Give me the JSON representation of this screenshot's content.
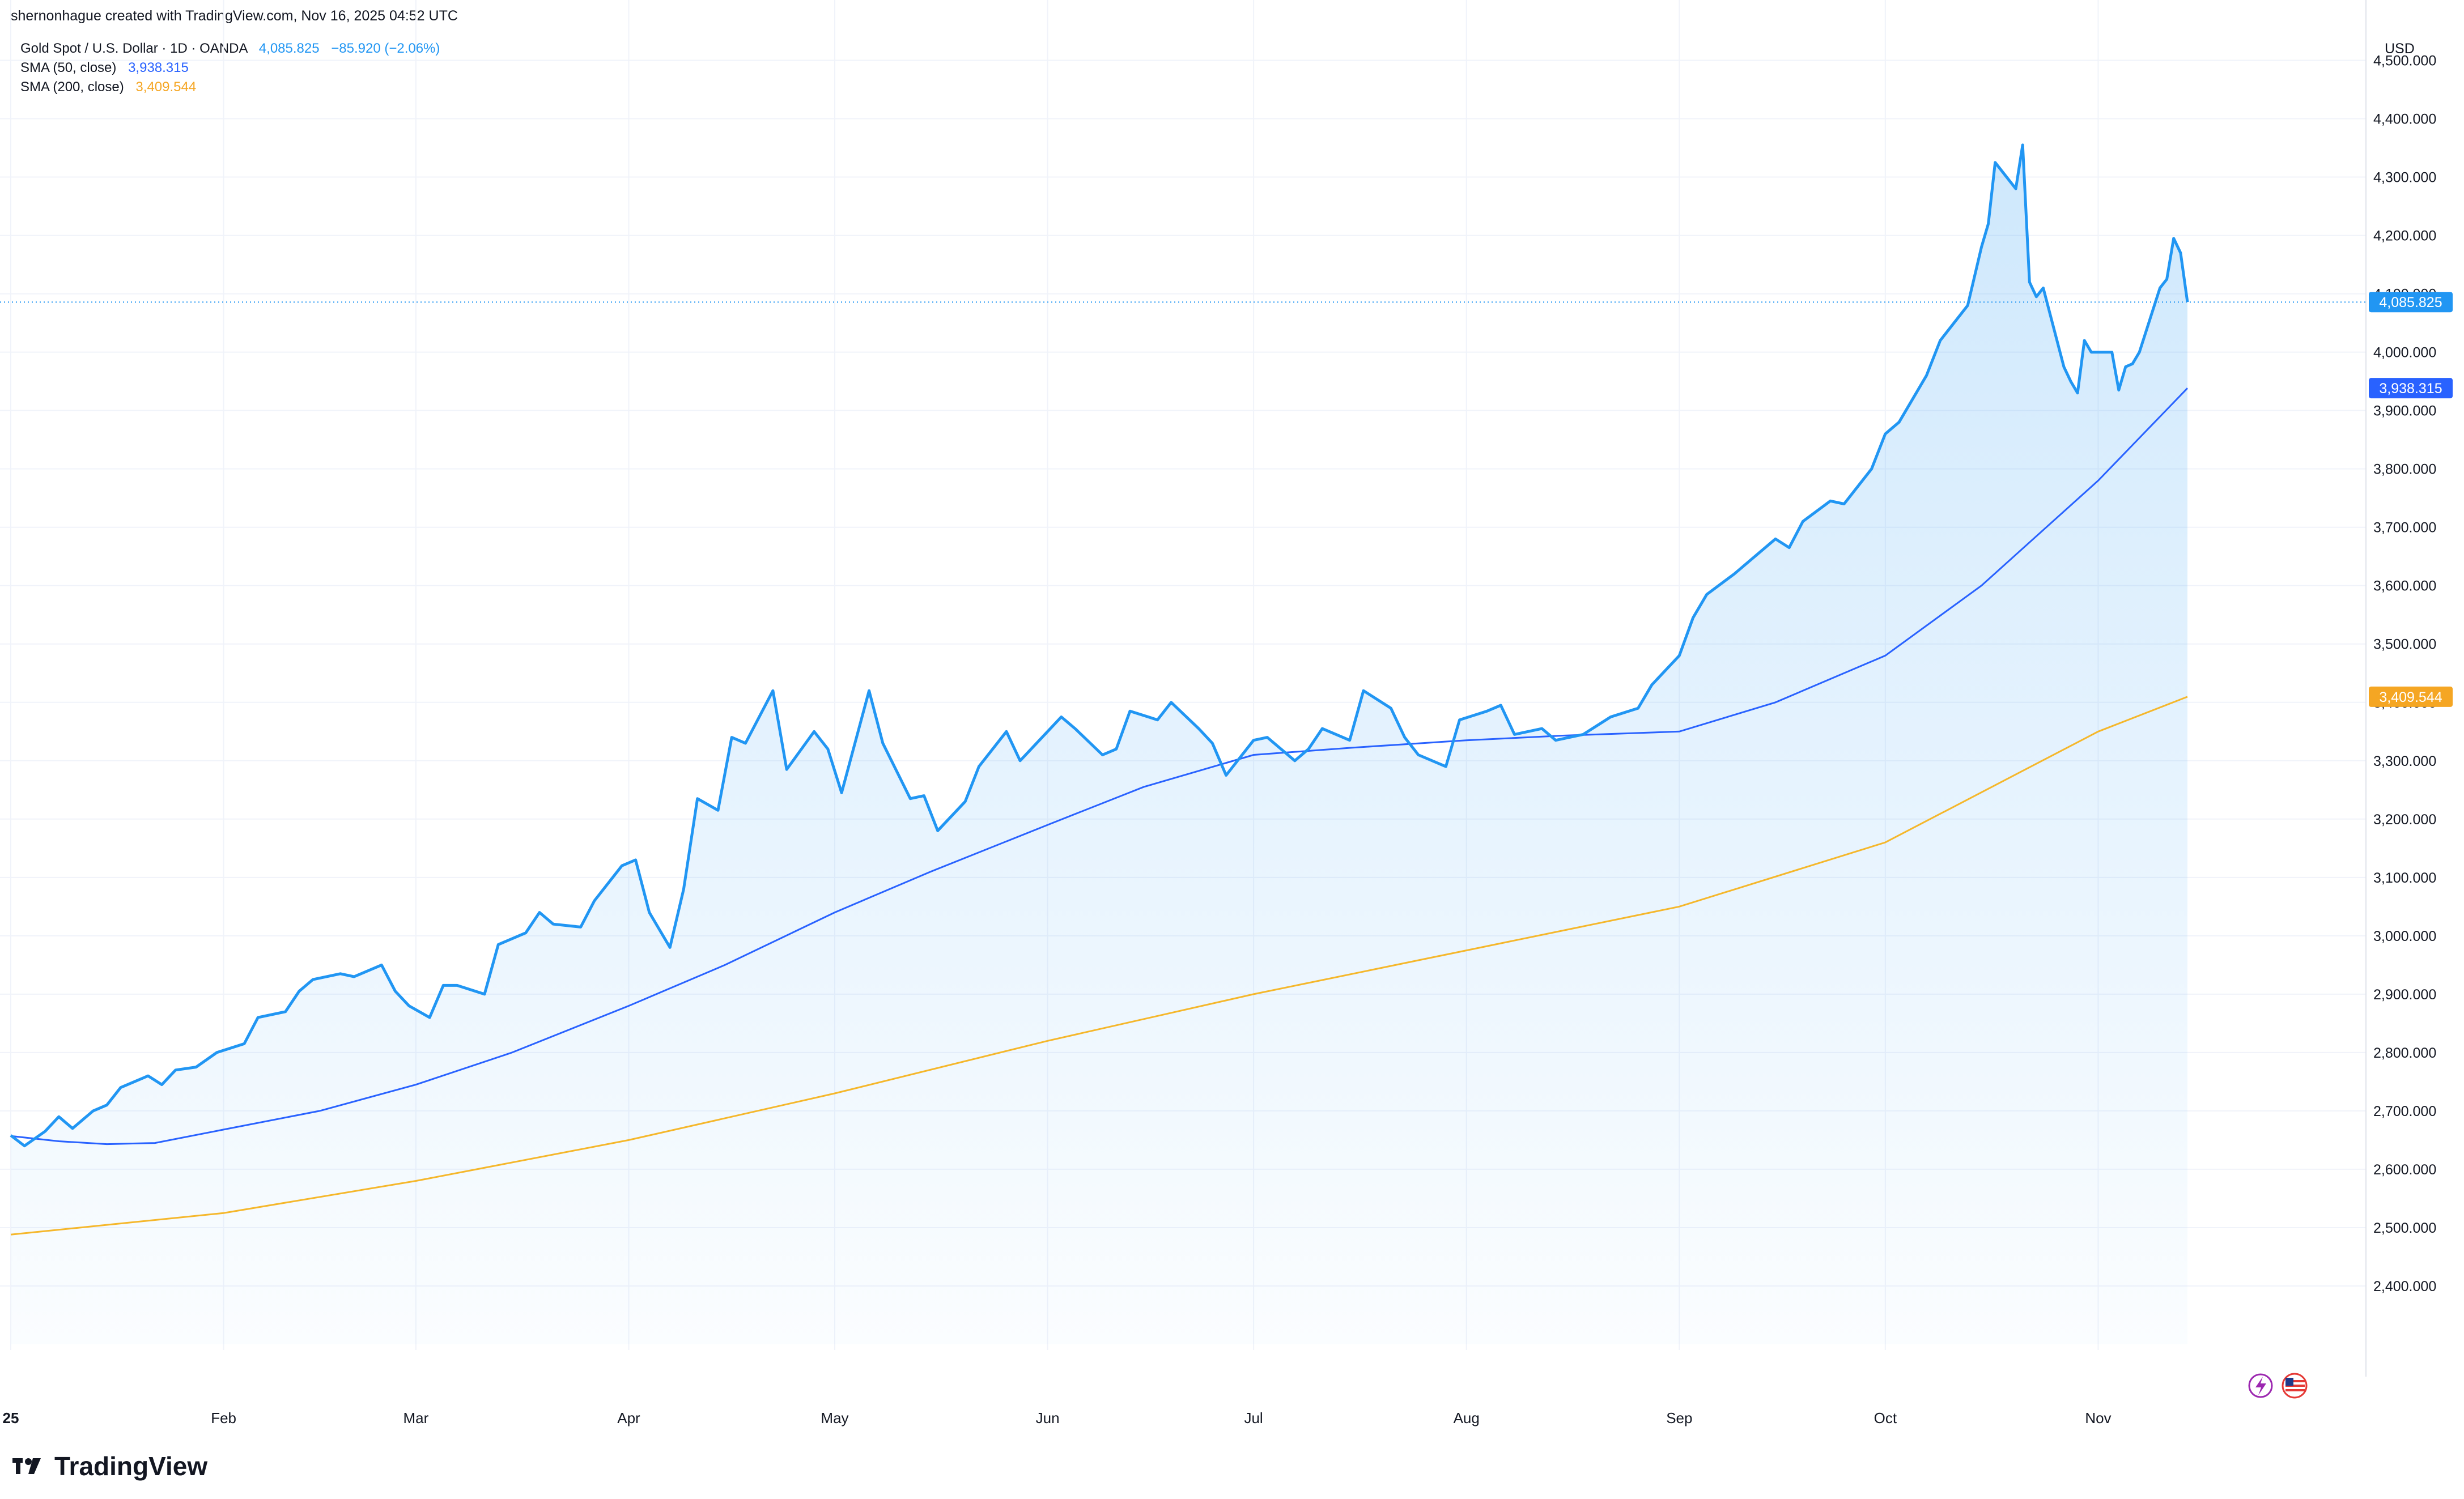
{
  "header": "shernonhague created with TradingView.com, Nov 16, 2025 04:52 UTC",
  "legend": {
    "symbol": "Gold Spot / U.S. Dollar · 1D · OANDA",
    "price": "4,085.825",
    "change": "−85.920 (−2.06%)",
    "sma50_label": "SMA (50, close)",
    "sma50_value": "3,938.315",
    "sma200_label": "SMA (200, close)",
    "sma200_value": "3,409.544"
  },
  "brand": "TradingView",
  "colors": {
    "price": "#2196f3",
    "change": "#2196f3",
    "sma50": "#2962ff",
    "sma200": "#f5b72b",
    "grid": "#f0f3fa",
    "text": "#131722"
  },
  "chart_data": {
    "type": "area",
    "currency": "USD",
    "y_range": [
      2300,
      4550
    ],
    "y_ticks": [
      2400,
      2500,
      2600,
      2700,
      2800,
      2900,
      3000,
      3100,
      3200,
      3300,
      3400,
      3500,
      3600,
      3700,
      3800,
      3900,
      4000,
      4100,
      4200,
      4300,
      4400,
      4500
    ],
    "y_tick_labels": [
      "2,400.000",
      "2,500.000",
      "2,600.000",
      "2,700.000",
      "2,800.000",
      "2,900.000",
      "3,000.000",
      "3,100.000",
      "3,200.000",
      "3,300.000",
      "3,400.000",
      "3,500.000",
      "3,600.000",
      "3,700.000",
      "3,800.000",
      "3,900.000",
      "4,000.000",
      "4,100.000",
      "4,200.000",
      "4,300.000",
      "4,400.000",
      "4,500.000"
    ],
    "x_labels": [
      {
        "label": "25",
        "date": "2025-01-01",
        "bold": true
      },
      {
        "label": "Feb",
        "date": "2025-02-01"
      },
      {
        "label": "Mar",
        "date": "2025-03-01"
      },
      {
        "label": "Apr",
        "date": "2025-04-01"
      },
      {
        "label": "May",
        "date": "2025-05-01"
      },
      {
        "label": "Jun",
        "date": "2025-06-01"
      },
      {
        "label": "Jul",
        "date": "2025-07-01"
      },
      {
        "label": "Aug",
        "date": "2025-08-01"
      },
      {
        "label": "Sep",
        "date": "2025-09-01"
      },
      {
        "label": "Oct",
        "date": "2025-10-01"
      },
      {
        "label": "Nov",
        "date": "2025-11-01"
      }
    ],
    "x_domain": [
      "2025-01-01",
      "2025-12-10"
    ],
    "series": [
      {
        "name": "Gold Spot / U.S. Dollar",
        "role": "price",
        "x": [
          "2025-01-01",
          "2025-01-03",
          "2025-01-06",
          "2025-01-08",
          "2025-01-10",
          "2025-01-13",
          "2025-01-15",
          "2025-01-17",
          "2025-01-21",
          "2025-01-23",
          "2025-01-25",
          "2025-01-28",
          "2025-01-31",
          "2025-02-04",
          "2025-02-06",
          "2025-02-10",
          "2025-02-12",
          "2025-02-14",
          "2025-02-18",
          "2025-02-20",
          "2025-02-24",
          "2025-02-26",
          "2025-02-28",
          "2025-03-03",
          "2025-03-05",
          "2025-03-07",
          "2025-03-11",
          "2025-03-13",
          "2025-03-17",
          "2025-03-19",
          "2025-03-21",
          "2025-03-25",
          "2025-03-27",
          "2025-03-31",
          "2025-04-02",
          "2025-04-04",
          "2025-04-07",
          "2025-04-09",
          "2025-04-11",
          "2025-04-14",
          "2025-04-16",
          "2025-04-18",
          "2025-04-22",
          "2025-04-24",
          "2025-04-28",
          "2025-04-30",
          "2025-05-02",
          "2025-05-06",
          "2025-05-08",
          "2025-05-12",
          "2025-05-14",
          "2025-05-16",
          "2025-05-20",
          "2025-05-22",
          "2025-05-26",
          "2025-05-28",
          "2025-05-30",
          "2025-06-03",
          "2025-06-05",
          "2025-06-09",
          "2025-06-11",
          "2025-06-13",
          "2025-06-17",
          "2025-06-19",
          "2025-06-23",
          "2025-06-25",
          "2025-06-27",
          "2025-07-01",
          "2025-07-03",
          "2025-07-07",
          "2025-07-09",
          "2025-07-11",
          "2025-07-15",
          "2025-07-17",
          "2025-07-21",
          "2025-07-23",
          "2025-07-25",
          "2025-07-29",
          "2025-07-31",
          "2025-08-04",
          "2025-08-06",
          "2025-08-08",
          "2025-08-12",
          "2025-08-14",
          "2025-08-18",
          "2025-08-20",
          "2025-08-22",
          "2025-08-26",
          "2025-08-28",
          "2025-09-01",
          "2025-09-03",
          "2025-09-05",
          "2025-09-09",
          "2025-09-11",
          "2025-09-15",
          "2025-09-17",
          "2025-09-19",
          "2025-09-23",
          "2025-09-25",
          "2025-09-29",
          "2025-10-01",
          "2025-10-03",
          "2025-10-07",
          "2025-10-09",
          "2025-10-13",
          "2025-10-15",
          "2025-10-16",
          "2025-10-17",
          "2025-10-20",
          "2025-10-21",
          "2025-10-22",
          "2025-10-23",
          "2025-10-24",
          "2025-10-27",
          "2025-10-28",
          "2025-10-29",
          "2025-10-30",
          "2025-10-31",
          "2025-11-03",
          "2025-11-04",
          "2025-11-05",
          "2025-11-06",
          "2025-11-07",
          "2025-11-10",
          "2025-11-11",
          "2025-11-12",
          "2025-11-13",
          "2025-11-14"
        ],
        "values": [
          2658,
          2640,
          2665,
          2690,
          2670,
          2700,
          2710,
          2740,
          2760,
          2745,
          2770,
          2775,
          2800,
          2815,
          2860,
          2870,
          2905,
          2925,
          2935,
          2930,
          2950,
          2905,
          2880,
          2860,
          2915,
          2915,
          2900,
          2985,
          3005,
          3040,
          3020,
          3015,
          3060,
          3120,
          3130,
          3040,
          2980,
          3080,
          3235,
          3215,
          3340,
          3330,
          3420,
          3285,
          3350,
          3320,
          3245,
          3420,
          3330,
          3235,
          3240,
          3180,
          3230,
          3290,
          3350,
          3300,
          3325,
          3375,
          3355,
          3310,
          3320,
          3385,
          3370,
          3400,
          3355,
          3330,
          3275,
          3335,
          3340,
          3300,
          3320,
          3355,
          3335,
          3420,
          3390,
          3340,
          3310,
          3290,
          3370,
          3385,
          3395,
          3345,
          3355,
          3335,
          3345,
          3360,
          3375,
          3390,
          3430,
          3480,
          3545,
          3585,
          3620,
          3640,
          3680,
          3665,
          3710,
          3745,
          3740,
          3800,
          3860,
          3880,
          3960,
          4020,
          4080,
          4180,
          4220,
          4325,
          4280,
          4355,
          4120,
          4095,
          4110,
          3975,
          3950,
          3930,
          4020,
          4000,
          4000,
          3935,
          3975,
          3980,
          4000,
          4110,
          4125,
          4195,
          4170,
          4085.825
        ]
      },
      {
        "name": "SMA (50, close)",
        "role": "sma50",
        "x": [
          "2025-01-01",
          "2025-01-08",
          "2025-01-15",
          "2025-01-22",
          "2025-02-01",
          "2025-02-15",
          "2025-03-01",
          "2025-03-15",
          "2025-04-01",
          "2025-04-15",
          "2025-05-01",
          "2025-05-15",
          "2025-06-01",
          "2025-06-15",
          "2025-07-01",
          "2025-07-15",
          "2025-08-01",
          "2025-08-15",
          "2025-09-01",
          "2025-09-15",
          "2025-10-01",
          "2025-10-15",
          "2025-11-01",
          "2025-11-14"
        ],
        "values": [
          2657,
          2648,
          2643,
          2645,
          2668,
          2700,
          2745,
          2800,
          2880,
          2950,
          3040,
          3110,
          3190,
          3255,
          3310,
          3322,
          3335,
          3343,
          3350,
          3400,
          3480,
          3600,
          3780,
          3938.315
        ]
      },
      {
        "name": "SMA (200, close)",
        "role": "sma200",
        "x": [
          "2025-01-01",
          "2025-02-01",
          "2025-03-01",
          "2025-04-01",
          "2025-05-01",
          "2025-06-01",
          "2025-07-01",
          "2025-08-01",
          "2025-09-01",
          "2025-10-01",
          "2025-11-01",
          "2025-11-14"
        ],
        "values": [
          2488,
          2525,
          2580,
          2650,
          2730,
          2820,
          2900,
          2975,
          3050,
          3160,
          3350,
          3409.544
        ]
      }
    ]
  },
  "price_labels": {
    "current": "4,085.825",
    "sma50": "3,938.315",
    "sma200": "3,409.544"
  },
  "icons": [
    "lightning-icon",
    "us-flag-icon"
  ]
}
